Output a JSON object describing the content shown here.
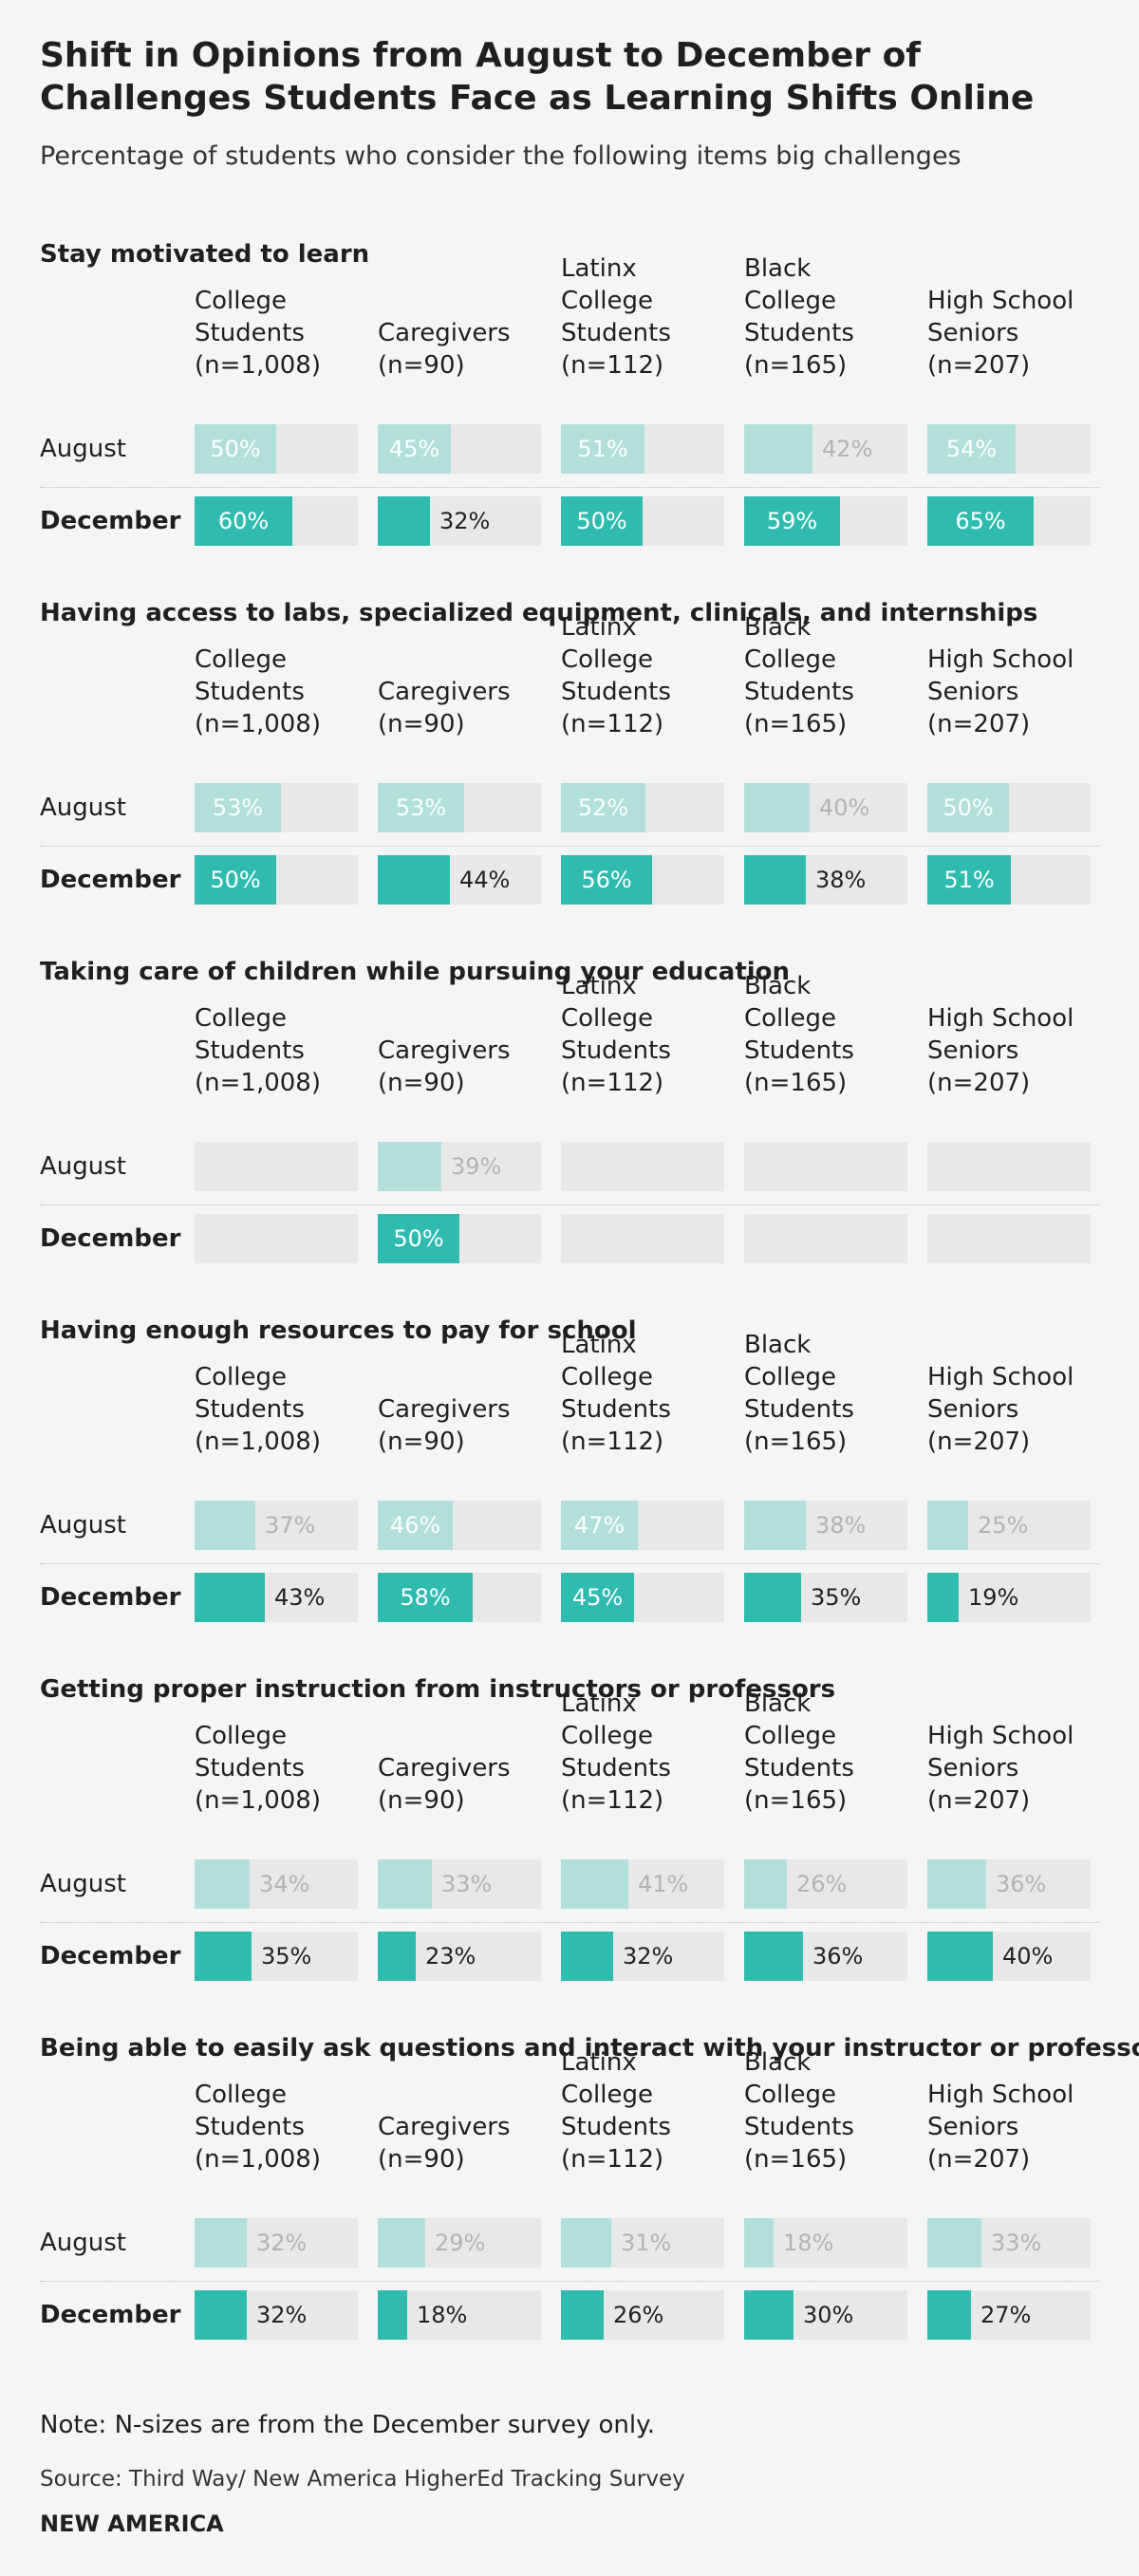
{
  "chart_data": {
    "type": "bar",
    "title": "Shift in Opinions from August to December of Challenges Students Face as Learning Shifts Online",
    "subtitle": "Percentage of students who consider the following items big challenges",
    "groups": [
      "College Students (n=1,008)",
      "Caregivers (n=90)",
      "Latinx College Students (n=112)",
      "Black College Students (n=165)",
      "High School Seniors (n=207)"
    ],
    "group_headings": [
      [
        "College",
        "Students",
        "(n=1,008)"
      ],
      [
        "Caregivers",
        "(n=90)"
      ],
      [
        "Latinx",
        "College",
        "Students",
        "(n=112)"
      ],
      [
        "Black",
        "College",
        "Students",
        "(n=165)"
      ],
      [
        "High School",
        "Seniors",
        "(n=207)"
      ]
    ],
    "row_labels": [
      "August",
      "December"
    ],
    "units": "%",
    "ylim": [
      0,
      100
    ],
    "colors": {
      "august": "#b2dfdb",
      "december": "#2fbcae",
      "track": "#e8e8e8",
      "label_in": "#ffffff",
      "label_out_august": "#b3b3b3",
      "label_out_december": "#222222"
    },
    "sections": [
      {
        "title": "Stay motivated to learn",
        "august": [
          50,
          45,
          51,
          42,
          54
        ],
        "december": [
          60,
          32,
          50,
          59,
          65
        ]
      },
      {
        "title": "Having access to labs, specialized equipment, clinicals, and internships",
        "august": [
          53,
          53,
          52,
          40,
          50
        ],
        "december": [
          50,
          44,
          56,
          38,
          51
        ]
      },
      {
        "title": "Taking care of children while pursuing your education",
        "august": [
          null,
          39,
          null,
          null,
          null
        ],
        "december": [
          null,
          50,
          null,
          null,
          null
        ]
      },
      {
        "title": "Having enough resources to pay for school",
        "august": [
          37,
          46,
          47,
          38,
          25
        ],
        "december": [
          43,
          58,
          45,
          35,
          19
        ]
      },
      {
        "title": "Getting proper instruction from instructors or professors",
        "august": [
          34,
          33,
          41,
          26,
          36
        ],
        "december": [
          35,
          23,
          32,
          36,
          40
        ]
      },
      {
        "title": "Being able to easily ask questions and interact with your instructor or professor",
        "august": [
          32,
          29,
          31,
          18,
          33
        ],
        "december": [
          32,
          18,
          26,
          30,
          27
        ]
      }
    ]
  },
  "footer": {
    "note": "Note: N-sizes are from the December survey only.",
    "source": "Source: Third Way/ New America HigherEd Tracking Survey",
    "brand": "NEW AMERICA"
  }
}
